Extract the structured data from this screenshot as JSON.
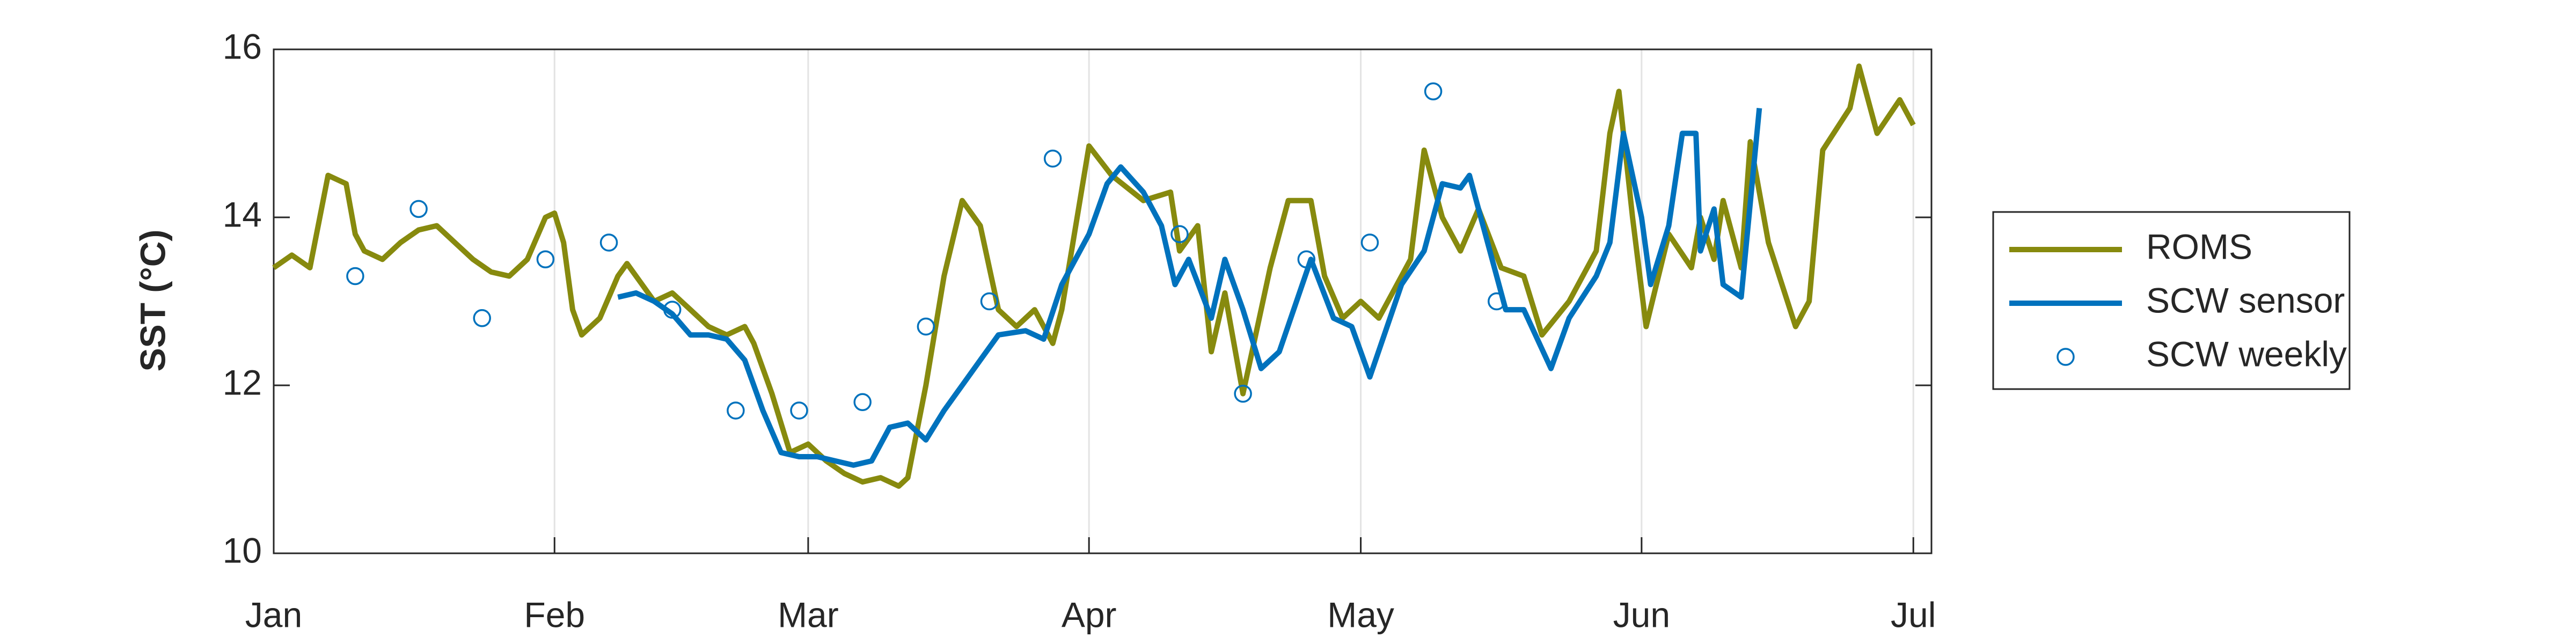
{
  "chart_data": {
    "type": "line",
    "y_label": "SST (°C)",
    "xlim": [
      0,
      183
    ],
    "xticks": [
      {
        "value": 0,
        "label": "Jan"
      },
      {
        "value": 31,
        "label": "Feb"
      },
      {
        "value": 59,
        "label": "Mar"
      },
      {
        "value": 90,
        "label": "Apr"
      },
      {
        "value": 120,
        "label": "May"
      },
      {
        "value": 151,
        "label": "Jun"
      },
      {
        "value": 181,
        "label": "Jul"
      }
    ],
    "ylim": [
      10,
      16
    ],
    "yticks": [
      10,
      12,
      14,
      16
    ],
    "grid": "x",
    "legend": "right",
    "series": [
      {
        "name": "ROMS",
        "color": "#878a0e",
        "style": "line",
        "x": [
          0,
          2,
          4,
          6,
          8,
          9,
          10,
          12,
          14,
          16,
          18,
          20,
          22,
          24,
          26,
          28,
          30,
          31,
          32,
          33,
          34,
          36,
          38,
          39,
          40,
          42,
          44,
          46,
          48,
          50,
          52,
          53,
          55,
          57,
          59,
          61,
          63,
          65,
          67,
          69,
          70,
          72,
          74,
          76,
          78,
          80,
          82,
          84,
          86,
          87,
          90,
          92.5,
          96,
          99,
          100,
          102,
          103.5,
          105,
          107,
          110,
          112,
          114.5,
          116,
          118,
          120,
          122,
          125.5,
          127,
          129,
          131,
          133,
          135.5,
          138,
          140,
          143,
          146,
          147.5,
          148.5,
          150,
          151.5,
          154,
          156.5,
          157.5,
          159,
          160,
          162,
          163,
          165,
          168,
          169.5,
          171,
          174,
          175,
          177,
          179.5,
          181
        ],
        "values": [
          13.4,
          13.55,
          13.4,
          14.5,
          14.4,
          13.8,
          13.6,
          13.5,
          13.7,
          13.85,
          13.9,
          13.7,
          13.5,
          13.35,
          13.3,
          13.5,
          14.0,
          14.05,
          13.7,
          12.9,
          12.6,
          12.8,
          13.3,
          13.45,
          13.3,
          13.0,
          13.1,
          12.9,
          12.7,
          12.6,
          12.7,
          12.5,
          11.9,
          11.2,
          11.3,
          11.1,
          10.95,
          10.85,
          10.9,
          10.8,
          10.9,
          12.0,
          13.3,
          14.2,
          13.9,
          12.9,
          12.7,
          12.9,
          12.5,
          12.9,
          14.85,
          14.5,
          14.2,
          14.3,
          13.6,
          13.9,
          12.4,
          13.1,
          11.9,
          13.4,
          14.2,
          14.2,
          13.3,
          12.8,
          13.0,
          12.8,
          13.5,
          14.8,
          14.0,
          13.6,
          14.1,
          13.4,
          13.3,
          12.6,
          13.0,
          13.6,
          15.0,
          15.5,
          14.0,
          12.7,
          13.8,
          13.4,
          14.0,
          13.5,
          14.2,
          13.4,
          14.9,
          13.7,
          12.7,
          13.0,
          14.8,
          15.3,
          15.8,
          15.0,
          15.4,
          15.1
        ]
      },
      {
        "name": "SCW sensor",
        "color": "#0072bd",
        "style": "line",
        "x": [
          38,
          40,
          42,
          44,
          46,
          48,
          50,
          52,
          54,
          56,
          58,
          60,
          62,
          64,
          66,
          68,
          70,
          72,
          74,
          76,
          78,
          80,
          83,
          85,
          87,
          90,
          92,
          93.5,
          96,
          98,
          99.5,
          101,
          103.5,
          105,
          107,
          109,
          111,
          114.5,
          117,
          119,
          121,
          124.5,
          127,
          129,
          131,
          132,
          135,
          136,
          138,
          141,
          143,
          146,
          147.5,
          149,
          151,
          152,
          154,
          155.5,
          157,
          157.5,
          159,
          160,
          162,
          164
        ],
        "values": [
          13.05,
          13.1,
          13.0,
          12.85,
          12.6,
          12.6,
          12.55,
          12.3,
          11.7,
          11.2,
          11.15,
          11.15,
          11.1,
          11.05,
          11.1,
          11.5,
          11.55,
          11.35,
          11.7,
          12.0,
          12.3,
          12.6,
          12.65,
          12.55,
          13.2,
          13.8,
          14.4,
          14.6,
          14.3,
          13.9,
          13.2,
          13.5,
          12.8,
          13.5,
          12.9,
          12.2,
          12.4,
          13.5,
          12.8,
          12.7,
          12.1,
          13.2,
          13.6,
          14.4,
          14.35,
          14.5,
          13.3,
          12.9,
          12.9,
          12.2,
          12.8,
          13.3,
          13.7,
          15.0,
          14.0,
          13.2,
          13.9,
          15.0,
          15.0,
          13.6,
          14.1,
          13.2,
          13.05,
          15.3
        ]
      },
      {
        "name": "SCW weekly",
        "color": "#0072bd",
        "style": "marker",
        "x": [
          9,
          16,
          23,
          30,
          37,
          44,
          51,
          58,
          65,
          72,
          79,
          86,
          100,
          107,
          114,
          121,
          128,
          135
        ],
        "values": [
          13.3,
          14.1,
          12.8,
          13.5,
          13.7,
          12.9,
          11.7,
          11.7,
          11.8,
          12.7,
          13.0,
          14.7,
          13.8,
          11.9,
          13.5,
          13.7,
          15.5,
          13.0
        ]
      }
    ]
  }
}
